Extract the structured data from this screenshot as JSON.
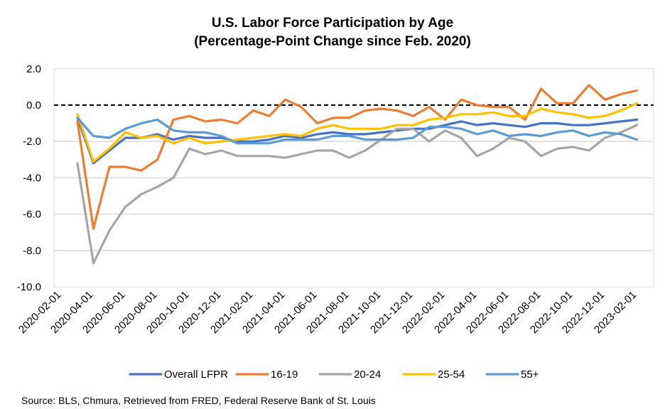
{
  "chart_data": {
    "type": "line",
    "title": "U.S. Labor Force Participation by Age",
    "subtitle": "(Percentage-Point Change since Feb. 2020)",
    "xlabel": "",
    "ylabel": "",
    "ylim": [
      -10,
      2
    ],
    "yticks": [
      "2.0",
      "0.0",
      "-2.0",
      "-4.0",
      "-6.0",
      "-8.0",
      "-10.0"
    ],
    "ytick_values": [
      2,
      0,
      -2,
      -4,
      -6,
      -8,
      -10
    ],
    "reference_line": {
      "value": 0,
      "style": "dashed",
      "color": "#000000"
    },
    "grid": true,
    "legend_position": "bottom",
    "x": [
      "2020-02-01",
      "2020-03-01",
      "2020-04-01",
      "2020-05-01",
      "2020-06-01",
      "2020-07-01",
      "2020-08-01",
      "2020-09-01",
      "2020-10-01",
      "2020-11-01",
      "2020-12-01",
      "2021-01-01",
      "2021-02-01",
      "2021-03-01",
      "2021-04-01",
      "2021-05-01",
      "2021-06-01",
      "2021-07-01",
      "2021-08-01",
      "2021-09-01",
      "2021-10-01",
      "2021-11-01",
      "2021-12-01",
      "2022-01-01",
      "2022-02-01",
      "2022-03-01",
      "2022-04-01",
      "2022-05-01",
      "2022-06-01",
      "2022-07-01",
      "2022-08-01",
      "2022-09-01",
      "2022-10-01",
      "2022-11-01",
      "2022-12-01",
      "2023-01-01",
      "2023-02-01"
    ],
    "xtick_labels": [
      "2020-02-01",
      "2020-04-01",
      "2020-06-01",
      "2020-08-01",
      "2020-10-01",
      "2020-12-01",
      "2021-02-01",
      "2021-04-01",
      "2021-06-01",
      "2021-08-01",
      "2021-10-01",
      "2021-12-01",
      "2022-02-01",
      "2022-04-01",
      "2022-06-01",
      "2022-08-01",
      "2022-10-01",
      "2022-12-01",
      "2023-02-01"
    ],
    "series": [
      {
        "name": "Overall LFPR",
        "color": "#4472C4",
        "values": [
          null,
          -0.7,
          -3.2,
          -2.5,
          -1.8,
          -1.8,
          -1.6,
          -1.9,
          -1.7,
          -1.8,
          -1.8,
          -2.0,
          -2.0,
          -1.9,
          -1.7,
          -1.8,
          -1.6,
          -1.5,
          -1.6,
          -1.6,
          -1.5,
          -1.4,
          -1.3,
          -1.3,
          -1.1,
          -0.9,
          -1.1,
          -1.0,
          -1.1,
          -1.2,
          -1.0,
          -1.0,
          -1.1,
          -1.1,
          -1.0,
          -0.9,
          -0.8
        ]
      },
      {
        "name": "16-19",
        "color": "#ED7D31",
        "values": [
          null,
          -0.9,
          -6.8,
          -3.4,
          -3.4,
          -3.6,
          -3.0,
          -0.8,
          -0.6,
          -0.9,
          -0.8,
          -1.0,
          -0.3,
          -0.6,
          0.3,
          -0.1,
          -1.0,
          -0.7,
          -0.7,
          -0.3,
          -0.2,
          -0.3,
          -0.6,
          -0.1,
          -0.8,
          0.3,
          0.0,
          -0.1,
          -0.1,
          -0.8,
          0.9,
          0.1,
          0.1,
          1.1,
          0.3,
          0.6,
          0.8
        ]
      },
      {
        "name": "20-24",
        "color": "#A5A5A5",
        "values": [
          null,
          -3.2,
          -8.7,
          -6.9,
          -5.6,
          -4.9,
          -4.5,
          -4.0,
          -2.4,
          -2.7,
          -2.5,
          -2.8,
          -2.8,
          -2.8,
          -2.9,
          -2.7,
          -2.5,
          -2.5,
          -2.9,
          -2.5,
          -1.9,
          -1.3,
          -1.3,
          -2.0,
          -1.4,
          -1.8,
          -2.8,
          -2.4,
          -1.8,
          -2.0,
          -2.8,
          -2.4,
          -2.3,
          -2.5,
          -1.8,
          -1.5,
          -1.1
        ]
      },
      {
        "name": "25-54",
        "color": "#FFC000",
        "values": [
          null,
          -0.5,
          -3.1,
          -2.4,
          -1.5,
          -1.8,
          -1.7,
          -2.1,
          -1.8,
          -2.1,
          -2.0,
          -1.9,
          -1.8,
          -1.7,
          -1.6,
          -1.7,
          -1.3,
          -1.1,
          -1.3,
          -1.3,
          -1.3,
          -1.1,
          -1.1,
          -0.8,
          -0.7,
          -0.5,
          -0.5,
          -0.4,
          -0.6,
          -0.6,
          -0.2,
          -0.4,
          -0.5,
          -0.7,
          -0.6,
          -0.3,
          0.1
        ]
      },
      {
        "name": "55+",
        "color": "#5B9BD5",
        "values": [
          null,
          -0.7,
          -1.7,
          -1.8,
          -1.3,
          -1.0,
          -0.8,
          -1.4,
          -1.5,
          -1.5,
          -1.7,
          -2.1,
          -2.1,
          -2.1,
          -1.9,
          -1.9,
          -1.9,
          -1.7,
          -1.7,
          -1.9,
          -1.9,
          -1.9,
          -1.8,
          -1.2,
          -1.2,
          -1.3,
          -1.6,
          -1.4,
          -1.7,
          -1.6,
          -1.7,
          -1.5,
          -1.4,
          -1.7,
          -1.5,
          -1.6,
          -1.9
        ]
      }
    ],
    "source": "Source: BLS, Chmura, Retrieved from FRED, Federal Reserve Bank of St. Louis"
  }
}
